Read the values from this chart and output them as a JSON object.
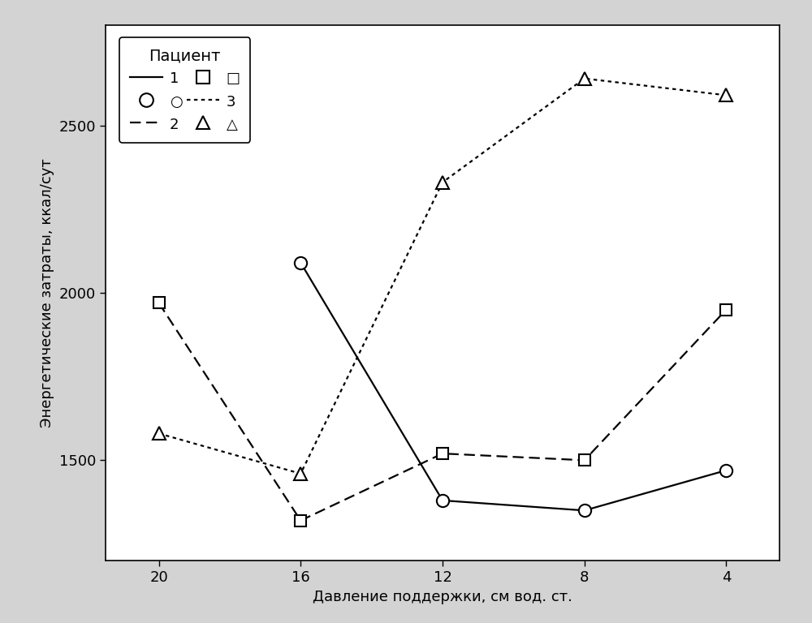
{
  "x_values": [
    20,
    16,
    12,
    8,
    4
  ],
  "patient1": {
    "x": [
      16,
      12,
      8,
      4
    ],
    "y": [
      2090,
      1380,
      1350,
      1470
    ],
    "linestyle": "solid",
    "marker": "o",
    "color": "#000000",
    "label": "1",
    "markersize": 11,
    "linewidth": 1.6
  },
  "patient2": {
    "x": [
      20,
      16,
      12,
      8,
      4
    ],
    "y": [
      1970,
      1320,
      1520,
      1500,
      1950
    ],
    "linestyle": "dashed",
    "marker": "s",
    "color": "#000000",
    "label": "2",
    "markersize": 10,
    "linewidth": 1.6
  },
  "patient3": {
    "x": [
      20,
      16,
      12,
      8,
      4
    ],
    "y": [
      1580,
      1460,
      2330,
      2640,
      2590
    ],
    "linestyle": "dotted",
    "marker": "^",
    "color": "#000000",
    "label": "3",
    "markersize": 11,
    "linewidth": 1.6
  },
  "xlabel": "Давление поддержки, см вод. ст.",
  "ylabel": "Энергетические затраты, ккал/сут",
  "legend_title": "Пациент",
  "yticks": [
    1500,
    2000,
    2500
  ],
  "xticks": [
    20,
    16,
    12,
    8,
    4
  ],
  "ylim": [
    1200,
    2800
  ],
  "xlim_left": 21.5,
  "xlim_right": 2.5,
  "background_color": "#ffffff",
  "plot_bg": "#ffffff",
  "xlabel_fontsize": 13,
  "ylabel_fontsize": 13,
  "tick_fontsize": 13,
  "legend_fontsize": 13,
  "legend_title_fontsize": 14,
  "outer_bg": "#d3d3d3"
}
